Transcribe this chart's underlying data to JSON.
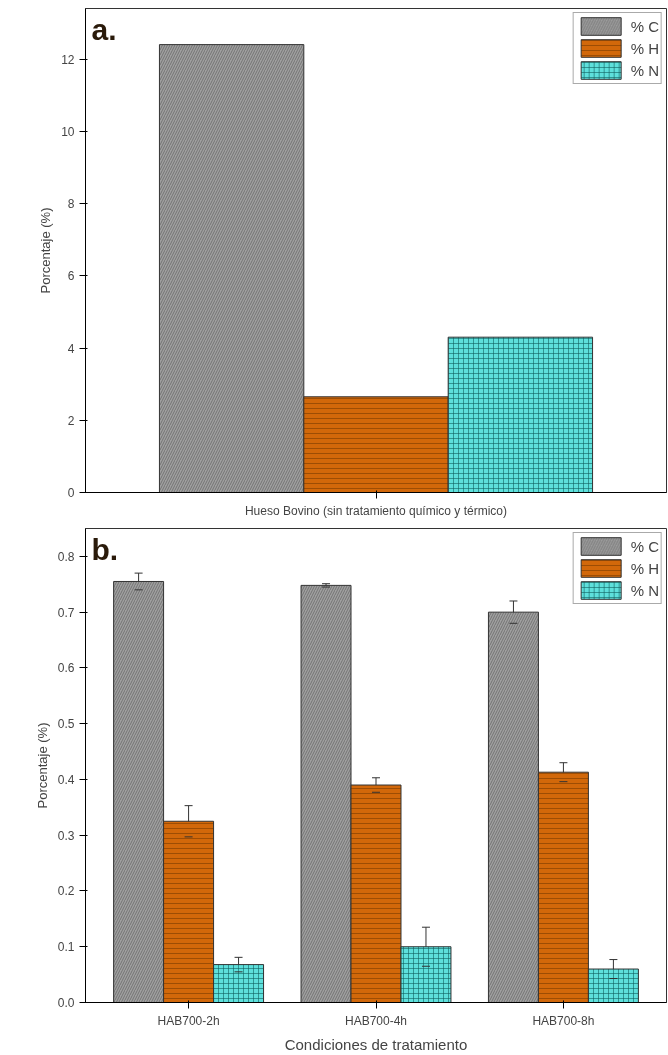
{
  "chart_data": [
    {
      "type": "bar",
      "annotations": [
        "a."
      ],
      "ylabel": "Porcentaje (%)",
      "categories": [
        "Hueso Bovino (sin tratamiento químico y térmico)"
      ],
      "series": [
        {
          "name": "% C",
          "color": "#a0a0a0",
          "values": [
            12.4
          ]
        },
        {
          "name": "% H",
          "color": "#d2680a",
          "values": [
            2.65
          ]
        },
        {
          "name": "% N",
          "color": "#5ee0dc",
          "values": [
            4.3
          ]
        }
      ],
      "ylim": [
        0,
        13.4
      ],
      "yticks": [
        0,
        2,
        4,
        6,
        8,
        10,
        12
      ],
      "legend": "top right",
      "grid": false
    },
    {
      "type": "bar",
      "annotations": [
        "b."
      ],
      "ylabel": "Porcentaje (%)",
      "xlabel": "Condiciones de tratamiento",
      "categories": [
        "HAB700-2h",
        "HAB700-4h",
        "HAB700-8h"
      ],
      "series": [
        {
          "name": "% C",
          "color": "#a0a0a0",
          "values": [
            0.755,
            0.748,
            0.7
          ],
          "errors": [
            0.015,
            0.003,
            0.02
          ]
        },
        {
          "name": "% H",
          "color": "#d2680a",
          "values": [
            0.325,
            0.39,
            0.413
          ],
          "errors": [
            0.028,
            0.013,
            0.017
          ]
        },
        {
          "name": "% N",
          "color": "#5ee0dc",
          "values": [
            0.068,
            0.1,
            0.06
          ],
          "errors": [
            0.013,
            0.035,
            0.017
          ]
        }
      ],
      "ylim": [
        0,
        0.85
      ],
      "yticks": [
        {
          "value": 0,
          "label": "0.0"
        },
        0.1,
        0.2,
        0.3,
        0.4,
        0.5,
        0.6,
        0.7,
        0.8
      ],
      "legend": "top right",
      "grid": false
    }
  ]
}
